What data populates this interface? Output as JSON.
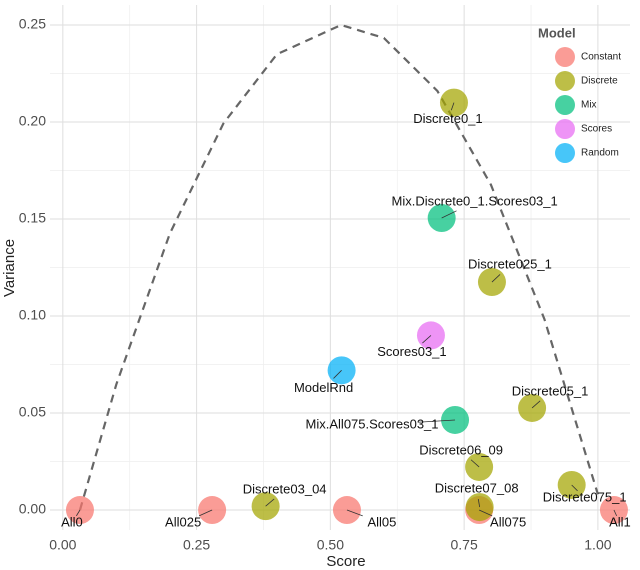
{
  "chart_data": {
    "type": "scatter",
    "xlabel": "Score",
    "ylabel": "Variance",
    "xlim": [
      -0.024,
      1.06
    ],
    "ylim": [
      -0.0103,
      0.2603
    ],
    "xticks": [
      {
        "value": 0,
        "label": "0.00"
      },
      {
        "value": 0.25,
        "label": "0.25"
      },
      {
        "value": 0.5,
        "label": "0.50"
      },
      {
        "value": 0.75,
        "label": "0.75"
      },
      {
        "value": 1,
        "label": "1.00"
      }
    ],
    "yticks": [
      {
        "value": 0,
        "label": "0.00"
      },
      {
        "value": 0.05,
        "label": "0.05"
      },
      {
        "value": 0.1,
        "label": "0.10"
      },
      {
        "value": 0.15,
        "label": "0.15"
      },
      {
        "value": 0.2,
        "label": "0.20"
      },
      {
        "value": 0.25,
        "label": "0.25"
      }
    ],
    "grid": true,
    "legend_title": "Model",
    "legend_position": "top-right",
    "curve": {
      "color": "#666666",
      "dashed": true,
      "x": [
        0.032,
        0.1,
        0.2,
        0.3,
        0.4,
        0.52,
        0.6,
        0.7,
        0.8,
        0.9,
        1.0
      ],
      "values": [
        0,
        0.0648,
        0.1425,
        0.1992,
        0.2349,
        0.25,
        0.2433,
        0.216,
        0.1677,
        0.0984,
        0.0081
      ]
    },
    "series": [
      {
        "name": "Constant",
        "color": "#F8766D",
        "x": [
          0.032,
          0.279,
          0.531,
          0.778,
          1.03
        ],
        "values": [
          0,
          0,
          0,
          0,
          0
        ],
        "labels": [
          "All0",
          "All025",
          "All05",
          "All075",
          "All1"
        ]
      },
      {
        "name": "Discrete",
        "color": "#A3A500",
        "x": [
          0.731,
          0.802,
          0.877,
          0.778,
          0.779,
          0.951,
          0.379
        ],
        "values": [
          0.21,
          0.1175,
          0.0526,
          0.0222,
          0.0015,
          0.0129,
          0.002
        ],
        "labels": [
          "Discrete0_1",
          "Discrete025_1",
          "Discrete05_1",
          "Discrete06_09",
          "Discrete07_08",
          "Discrete075_1",
          "Discrete03_04"
        ]
      },
      {
        "name": "Mix",
        "color": "#00BF7D",
        "x": [
          0.708,
          0.733
        ],
        "values": [
          0.1505,
          0.0464
        ],
        "labels": [
          "Mix.Discrete0_1.Scores03_1",
          "Mix.All075.Scores03_1"
        ]
      },
      {
        "name": "Scores",
        "color": "#E76BF3",
        "x": [
          0.688
        ],
        "values": [
          0.09
        ],
        "labels": [
          "Scores03_1"
        ]
      },
      {
        "name": "Random",
        "color": "#00B0F6",
        "x": [
          0.521
        ],
        "values": [
          0.072
        ],
        "labels": [
          "ModelRnd"
        ]
      }
    ]
  }
}
